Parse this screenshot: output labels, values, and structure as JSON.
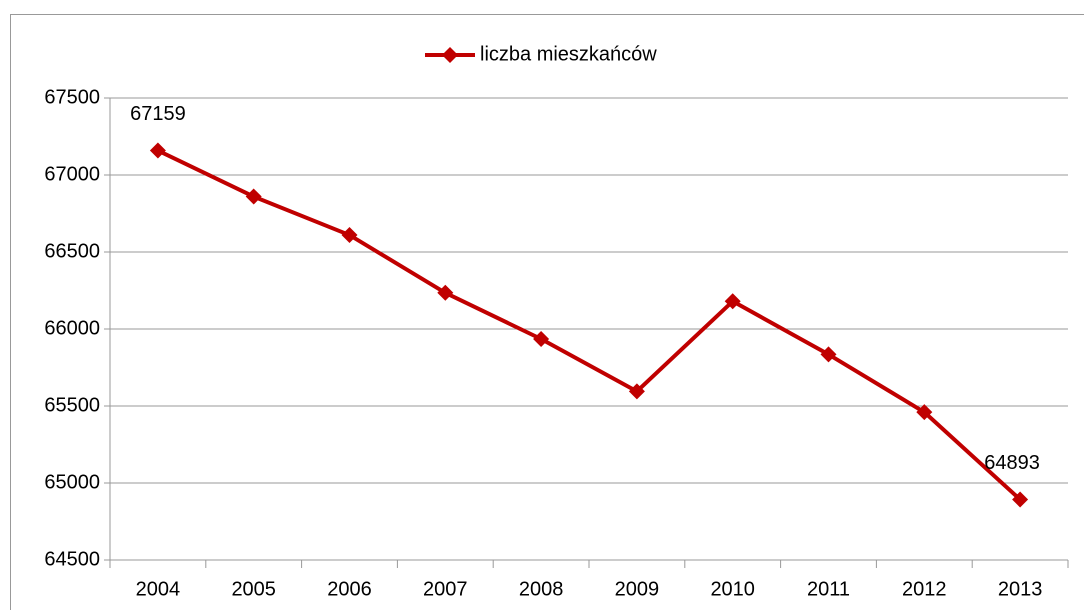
{
  "chart_data": {
    "type": "line",
    "categories": [
      "2004",
      "2005",
      "2006",
      "2007",
      "2008",
      "2009",
      "2010",
      "2011",
      "2012",
      "2013"
    ],
    "series": [
      {
        "name": "liczba mieszkańców",
        "color": "#c00000",
        "values": [
          67159,
          66860,
          66610,
          66235,
          65935,
          65595,
          66180,
          65835,
          65460,
          64893
        ]
      }
    ],
    "ylim": [
      64500,
      67500
    ],
    "yticks": [
      64500,
      65000,
      65500,
      66000,
      66500,
      67000,
      67500
    ],
    "grid": true,
    "legend": "top"
  }
}
